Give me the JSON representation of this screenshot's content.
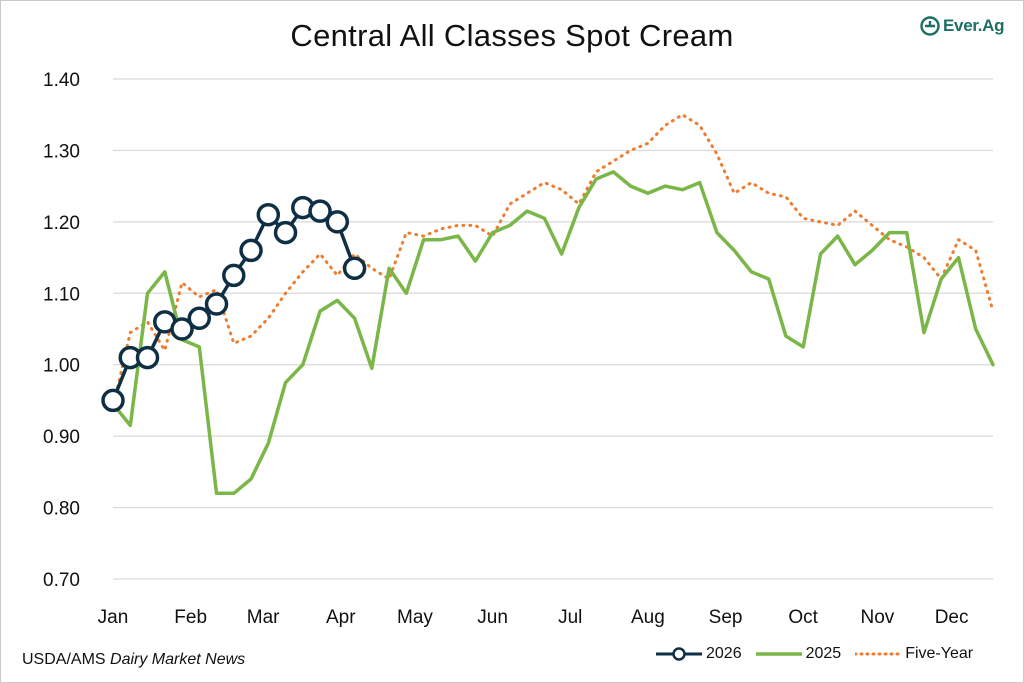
{
  "header": {
    "title": "Central All Classes Spot Cream",
    "logo_text": "Ever.Ag"
  },
  "footer": {
    "source_prefix": "USDA/AMS ",
    "source_italic": "Dairy Market News"
  },
  "colors": {
    "series_2026": "#0e2f44",
    "series_2025": "#7ab648",
    "series_five_year": "#ed7d31",
    "grid": "#d9d9d9",
    "logo": "#1e6f63"
  },
  "chart_data": {
    "type": "line",
    "title": "Central All Classes Spot Cream",
    "xlabel": "",
    "ylabel": "",
    "ylim": [
      0.7,
      1.4
    ],
    "y_ticks": [
      "0.70",
      "0.80",
      "0.90",
      "1.00",
      "1.10",
      "1.20",
      "1.30",
      "1.40"
    ],
    "x_range_weeks": [
      1,
      52
    ],
    "month_labels": [
      {
        "label": "Jan",
        "week": 1
      },
      {
        "label": "Feb",
        "week": 5.5
      },
      {
        "label": "Mar",
        "week": 9.7
      },
      {
        "label": "Apr",
        "week": 14.2
      },
      {
        "label": "May",
        "week": 18.5
      },
      {
        "label": "Jun",
        "week": 23
      },
      {
        "label": "Jul",
        "week": 27.5
      },
      {
        "label": "Aug",
        "week": 32
      },
      {
        "label": "Sep",
        "week": 36.5
      },
      {
        "label": "Oct",
        "week": 41
      },
      {
        "label": "Nov",
        "week": 45.3
      },
      {
        "label": "Dec",
        "week": 49.6
      }
    ],
    "grid": true,
    "legend_position": "bottom-right",
    "series": [
      {
        "name": "2026",
        "style": "solid-markers",
        "x": [
          1,
          2,
          3,
          4,
          5,
          6,
          7,
          8,
          9,
          10,
          11,
          12,
          13,
          14,
          15
        ],
        "values": [
          0.95,
          1.01,
          1.01,
          1.06,
          1.05,
          1.065,
          1.085,
          1.125,
          1.16,
          1.21,
          1.185,
          1.22,
          1.215,
          1.2,
          1.135
        ]
      },
      {
        "name": "2025",
        "style": "solid",
        "x": [
          1,
          2,
          3,
          4,
          5,
          6,
          7,
          8,
          9,
          10,
          11,
          12,
          13,
          14,
          15,
          16,
          17,
          18,
          19,
          20,
          21,
          22,
          23,
          24,
          25,
          26,
          27,
          28,
          29,
          30,
          31,
          32,
          33,
          34,
          35,
          36,
          37,
          38,
          39,
          40,
          41,
          42,
          43,
          44,
          45,
          46,
          47,
          48,
          49,
          50,
          51,
          52
        ],
        "values": [
          0.945,
          0.915,
          1.1,
          1.13,
          1.035,
          1.025,
          0.82,
          0.82,
          0.84,
          0.89,
          0.975,
          1.0,
          1.075,
          1.09,
          1.065,
          0.995,
          1.135,
          1.1,
          1.175,
          1.175,
          1.18,
          1.145,
          1.185,
          1.195,
          1.215,
          1.205,
          1.155,
          1.22,
          1.26,
          1.27,
          1.25,
          1.24,
          1.25,
          1.245,
          1.255,
          1.185,
          1.16,
          1.13,
          1.12,
          1.04,
          1.025,
          1.155,
          1.18,
          1.14,
          1.16,
          1.185,
          1.185,
          1.045,
          1.12,
          1.15,
          1.05,
          1.0
        ]
      },
      {
        "name": "Five-Year",
        "style": "dotted",
        "x": [
          1,
          2,
          3,
          4,
          5,
          6,
          7,
          8,
          9,
          10,
          11,
          12,
          13,
          14,
          15,
          16,
          17,
          18,
          19,
          20,
          21,
          22,
          23,
          24,
          25,
          26,
          27,
          28,
          29,
          30,
          31,
          32,
          33,
          34,
          35,
          36,
          37,
          38,
          39,
          40,
          41,
          42,
          43,
          44,
          45,
          46,
          47,
          48,
          49,
          50,
          51,
          52
        ],
        "values": [
          0.94,
          1.045,
          1.06,
          1.02,
          1.115,
          1.095,
          1.105,
          1.03,
          1.04,
          1.065,
          1.1,
          1.13,
          1.155,
          1.125,
          1.155,
          1.135,
          1.12,
          1.185,
          1.18,
          1.19,
          1.195,
          1.195,
          1.18,
          1.225,
          1.24,
          1.255,
          1.245,
          1.225,
          1.27,
          1.285,
          1.3,
          1.31,
          1.335,
          1.35,
          1.335,
          1.295,
          1.24,
          1.255,
          1.24,
          1.235,
          1.205,
          1.2,
          1.195,
          1.215,
          1.195,
          1.175,
          1.165,
          1.15,
          1.12,
          1.175,
          1.16,
          1.075
        ]
      }
    ]
  }
}
